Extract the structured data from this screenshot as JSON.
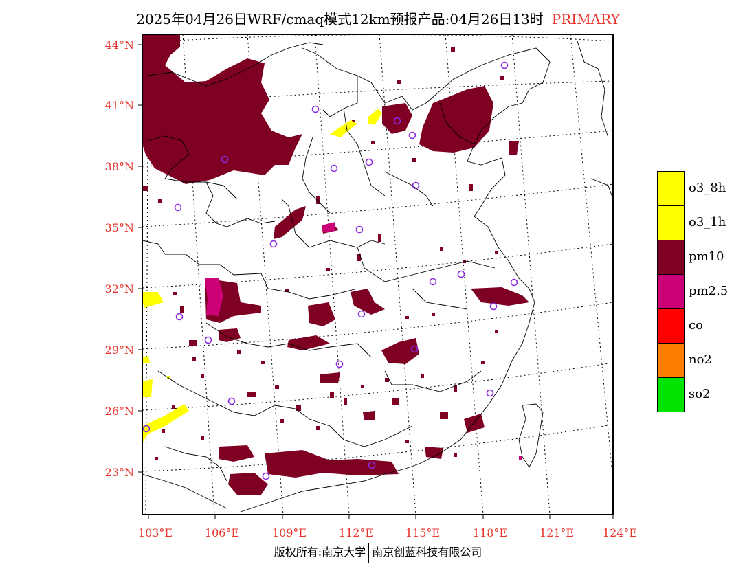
{
  "title": {
    "main": "2025年04月26日WRF/cmaq模式12km预报产品:04月26日13时",
    "tag": "PRIMARY"
  },
  "axes": {
    "lat_labels": [
      "44°N",
      "41°N",
      "38°N",
      "35°N",
      "32°N",
      "29°N",
      "26°N",
      "23°N"
    ],
    "lon_labels": [
      "103°E",
      "106°E",
      "109°E",
      "112°E",
      "115°E",
      "118°E",
      "121°E",
      "124°E"
    ]
  },
  "legend": [
    {
      "label": "o3_8h",
      "color": "#ffff00"
    },
    {
      "label": "o3_1h",
      "color": "#ffff00"
    },
    {
      "label": "pm10",
      "color": "#7e0023"
    },
    {
      "label": "pm2.5",
      "color": "#cc0077"
    },
    {
      "label": "co",
      "color": "#ff0000"
    },
    {
      "label": "no2",
      "color": "#ff7e00"
    },
    {
      "label": "so2",
      "color": "#00e400"
    }
  ],
  "footer": {
    "left": "版权所有:南京大学",
    "right": "南京创蓝科技有限公司"
  },
  "colors": {
    "axis_text": "#e8342c",
    "station_marker": "#8a2be2"
  }
}
